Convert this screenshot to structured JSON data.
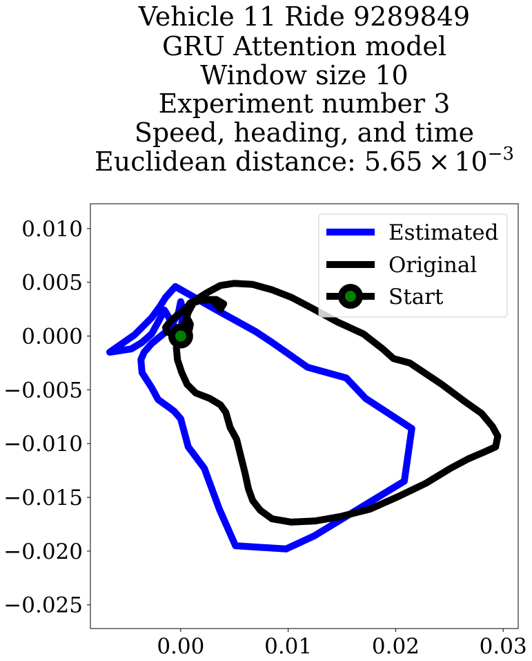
{
  "chart_data": {
    "type": "line",
    "title_lines": [
      "Vehicle 11 Ride 9289849",
      "GRU Attention model",
      "Window size 10",
      "Experiment number 3",
      "Speed, heading, and time"
    ],
    "title_metric_prefix": "Euclidean distance: 5.65",
    "title_metric_times": "×",
    "title_metric_base": "10",
    "title_metric_exp": "−3",
    "xlim": [
      -0.0084,
      0.0314
    ],
    "ylim": [
      -0.0272,
      0.0123
    ],
    "x_ticks": [
      0.0,
      0.01,
      0.02,
      0.03
    ],
    "x_tick_labels": [
      "0.00",
      "0.01",
      "0.02",
      "0.03"
    ],
    "y_ticks": [
      0.01,
      0.005,
      0.0,
      -0.005,
      -0.01,
      -0.015,
      -0.02,
      -0.025
    ],
    "y_tick_labels": [
      "0.010",
      "0.005",
      "0.000",
      "−0.005",
      "−0.010",
      "−0.015",
      "−0.020",
      "−0.025"
    ],
    "grid": false,
    "legend_position": "upper right",
    "series": [
      {
        "name": "Estimated",
        "color": "#0000ff",
        "points": [
          [
            0.0,
            0.0
          ],
          [
            -0.0008,
            0.0012
          ],
          [
            -0.0015,
            0.0024
          ],
          [
            -0.0027,
            0.0002
          ],
          [
            -0.0036,
            -0.0006
          ],
          [
            -0.0046,
            -0.0012
          ],
          [
            -0.0066,
            -0.0015
          ],
          [
            -0.0043,
            0.0001
          ],
          [
            -0.0027,
            0.0017
          ],
          [
            -0.0019,
            0.0028
          ],
          [
            -0.0014,
            0.0036
          ],
          [
            -0.0005,
            0.0046
          ],
          [
            0.0032,
            0.0025
          ],
          [
            0.007,
            0.0004
          ],
          [
            0.0085,
            -0.0006
          ],
          [
            0.0118,
            -0.0029
          ],
          [
            0.0154,
            -0.0039
          ],
          [
            0.0172,
            -0.0058
          ],
          [
            0.0215,
            -0.0086
          ],
          [
            0.0208,
            -0.0135
          ],
          [
            0.0175,
            -0.0155
          ],
          [
            0.0124,
            -0.0186
          ],
          [
            0.0098,
            -0.0198
          ],
          [
            0.0051,
            -0.0195
          ],
          [
            0.0036,
            -0.0161
          ],
          [
            0.0022,
            -0.0123
          ],
          [
            0.0007,
            -0.0103
          ],
          [
            0.0,
            -0.0077
          ],
          [
            -0.0006,
            -0.007
          ],
          [
            -0.001,
            -0.0067
          ],
          [
            -0.0021,
            -0.0059
          ],
          [
            -0.0027,
            -0.0048
          ],
          [
            -0.0036,
            -0.0034
          ],
          [
            -0.0037,
            -0.0022
          ],
          [
            -0.0034,
            -0.0015
          ],
          [
            -0.0027,
            -0.0007
          ],
          [
            -0.001,
            0.0007
          ],
          [
            -0.0002,
            0.0022
          ],
          [
            0.0,
            0.0032
          ],
          [
            0.0002,
            0.0024
          ],
          [
            0.0,
            0.0
          ]
        ]
      },
      {
        "name": "Original",
        "color": "#000000",
        "points": [
          [
            0.0,
            0.0
          ],
          [
            0.0008,
            0.0006
          ],
          [
            0.0009,
            0.0011
          ],
          [
            0.0006,
            0.0017
          ],
          [
            0.0004,
            0.0024
          ],
          [
            0.0009,
            0.0031
          ],
          [
            0.0022,
            0.0034
          ],
          [
            0.0033,
            0.0034
          ],
          [
            0.004,
            0.003
          ],
          [
            0.0037,
            0.0025
          ],
          [
            0.0034,
            0.0029
          ],
          [
            0.0029,
            0.0034
          ],
          [
            0.0018,
            0.0033
          ],
          [
            0.0009,
            0.003
          ],
          [
            0.0003,
            0.0024
          ],
          [
            -0.0006,
            0.0017
          ],
          [
            -0.0011,
            0.0012
          ],
          [
            -0.0014,
            0.0008
          ],
          [
            -0.0013,
            0.0004
          ],
          [
            -0.0008,
            0.0002
          ],
          [
            -0.0003,
            0.0004
          ],
          [
            0.0002,
            0.0003
          ],
          [
            0.0004,
            0.0012
          ],
          [
            0.0007,
            0.0022
          ],
          [
            0.0013,
            0.0033
          ],
          [
            0.0024,
            0.004
          ],
          [
            0.0037,
            0.0047
          ],
          [
            0.005,
            0.0049
          ],
          [
            0.0067,
            0.0048
          ],
          [
            0.0085,
            0.0043
          ],
          [
            0.0103,
            0.0036
          ],
          [
            0.0122,
            0.0026
          ],
          [
            0.0146,
            0.0013
          ],
          [
            0.017,
            0.0002
          ],
          [
            0.0188,
            -0.0012
          ],
          [
            0.0198,
            -0.0021
          ],
          [
            0.0213,
            -0.0025
          ],
          [
            0.0225,
            -0.0033
          ],
          [
            0.0243,
            -0.0045
          ],
          [
            0.0263,
            -0.006
          ],
          [
            0.028,
            -0.0072
          ],
          [
            0.029,
            -0.0084
          ],
          [
            0.0295,
            -0.0093
          ],
          [
            0.0293,
            -0.0103
          ],
          [
            0.0282,
            -0.0108
          ],
          [
            0.0268,
            -0.0114
          ],
          [
            0.0251,
            -0.0123
          ],
          [
            0.0228,
            -0.0137
          ],
          [
            0.0203,
            -0.0149
          ],
          [
            0.0176,
            -0.0161
          ],
          [
            0.0148,
            -0.0168
          ],
          [
            0.0125,
            -0.0172
          ],
          [
            0.0103,
            -0.0173
          ],
          [
            0.0085,
            -0.017
          ],
          [
            0.0074,
            -0.0162
          ],
          [
            0.0067,
            -0.0153
          ],
          [
            0.0063,
            -0.0142
          ],
          [
            0.006,
            -0.0128
          ],
          [
            0.0056,
            -0.0112
          ],
          [
            0.0052,
            -0.0096
          ],
          [
            0.0046,
            -0.0085
          ],
          [
            0.0042,
            -0.0071
          ],
          [
            0.0037,
            -0.0064
          ],
          [
            0.0027,
            -0.0058
          ],
          [
            0.0014,
            -0.0053
          ],
          [
            0.0006,
            -0.0045
          ],
          [
            0.0001,
            -0.0034
          ],
          [
            -0.0003,
            -0.0022
          ],
          [
            -0.0004,
            -0.0011
          ],
          [
            -0.0002,
            -0.0004
          ],
          [
            0.0,
            0.0
          ]
        ]
      }
    ],
    "start_marker": {
      "name": "Start",
      "x": 0.0,
      "y": 0.0,
      "edge_color": "#000000",
      "face_color": "#008000"
    }
  }
}
